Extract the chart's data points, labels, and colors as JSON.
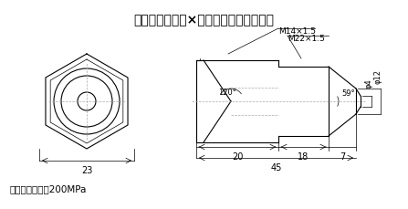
{
  "title": "ＦＭＳＵ－１４×２２メスオスソケット",
  "subtitle": "最高使用圧力：200MPa",
  "bg_color": "#ffffff",
  "line_color": "#000000",
  "dim_color": "#000000",
  "gray_color": "#aaaaaa",
  "blue_color": "#0000cc",
  "label_M14": "M14×1.5",
  "label_M22": "M22×1.5",
  "label_120": "120°",
  "label_59": "59°",
  "label_phi4": "φ4",
  "label_phi12": "φ12",
  "label_23": "23",
  "label_20": "20",
  "label_18": "18",
  "label_7": "7",
  "label_45": "45"
}
